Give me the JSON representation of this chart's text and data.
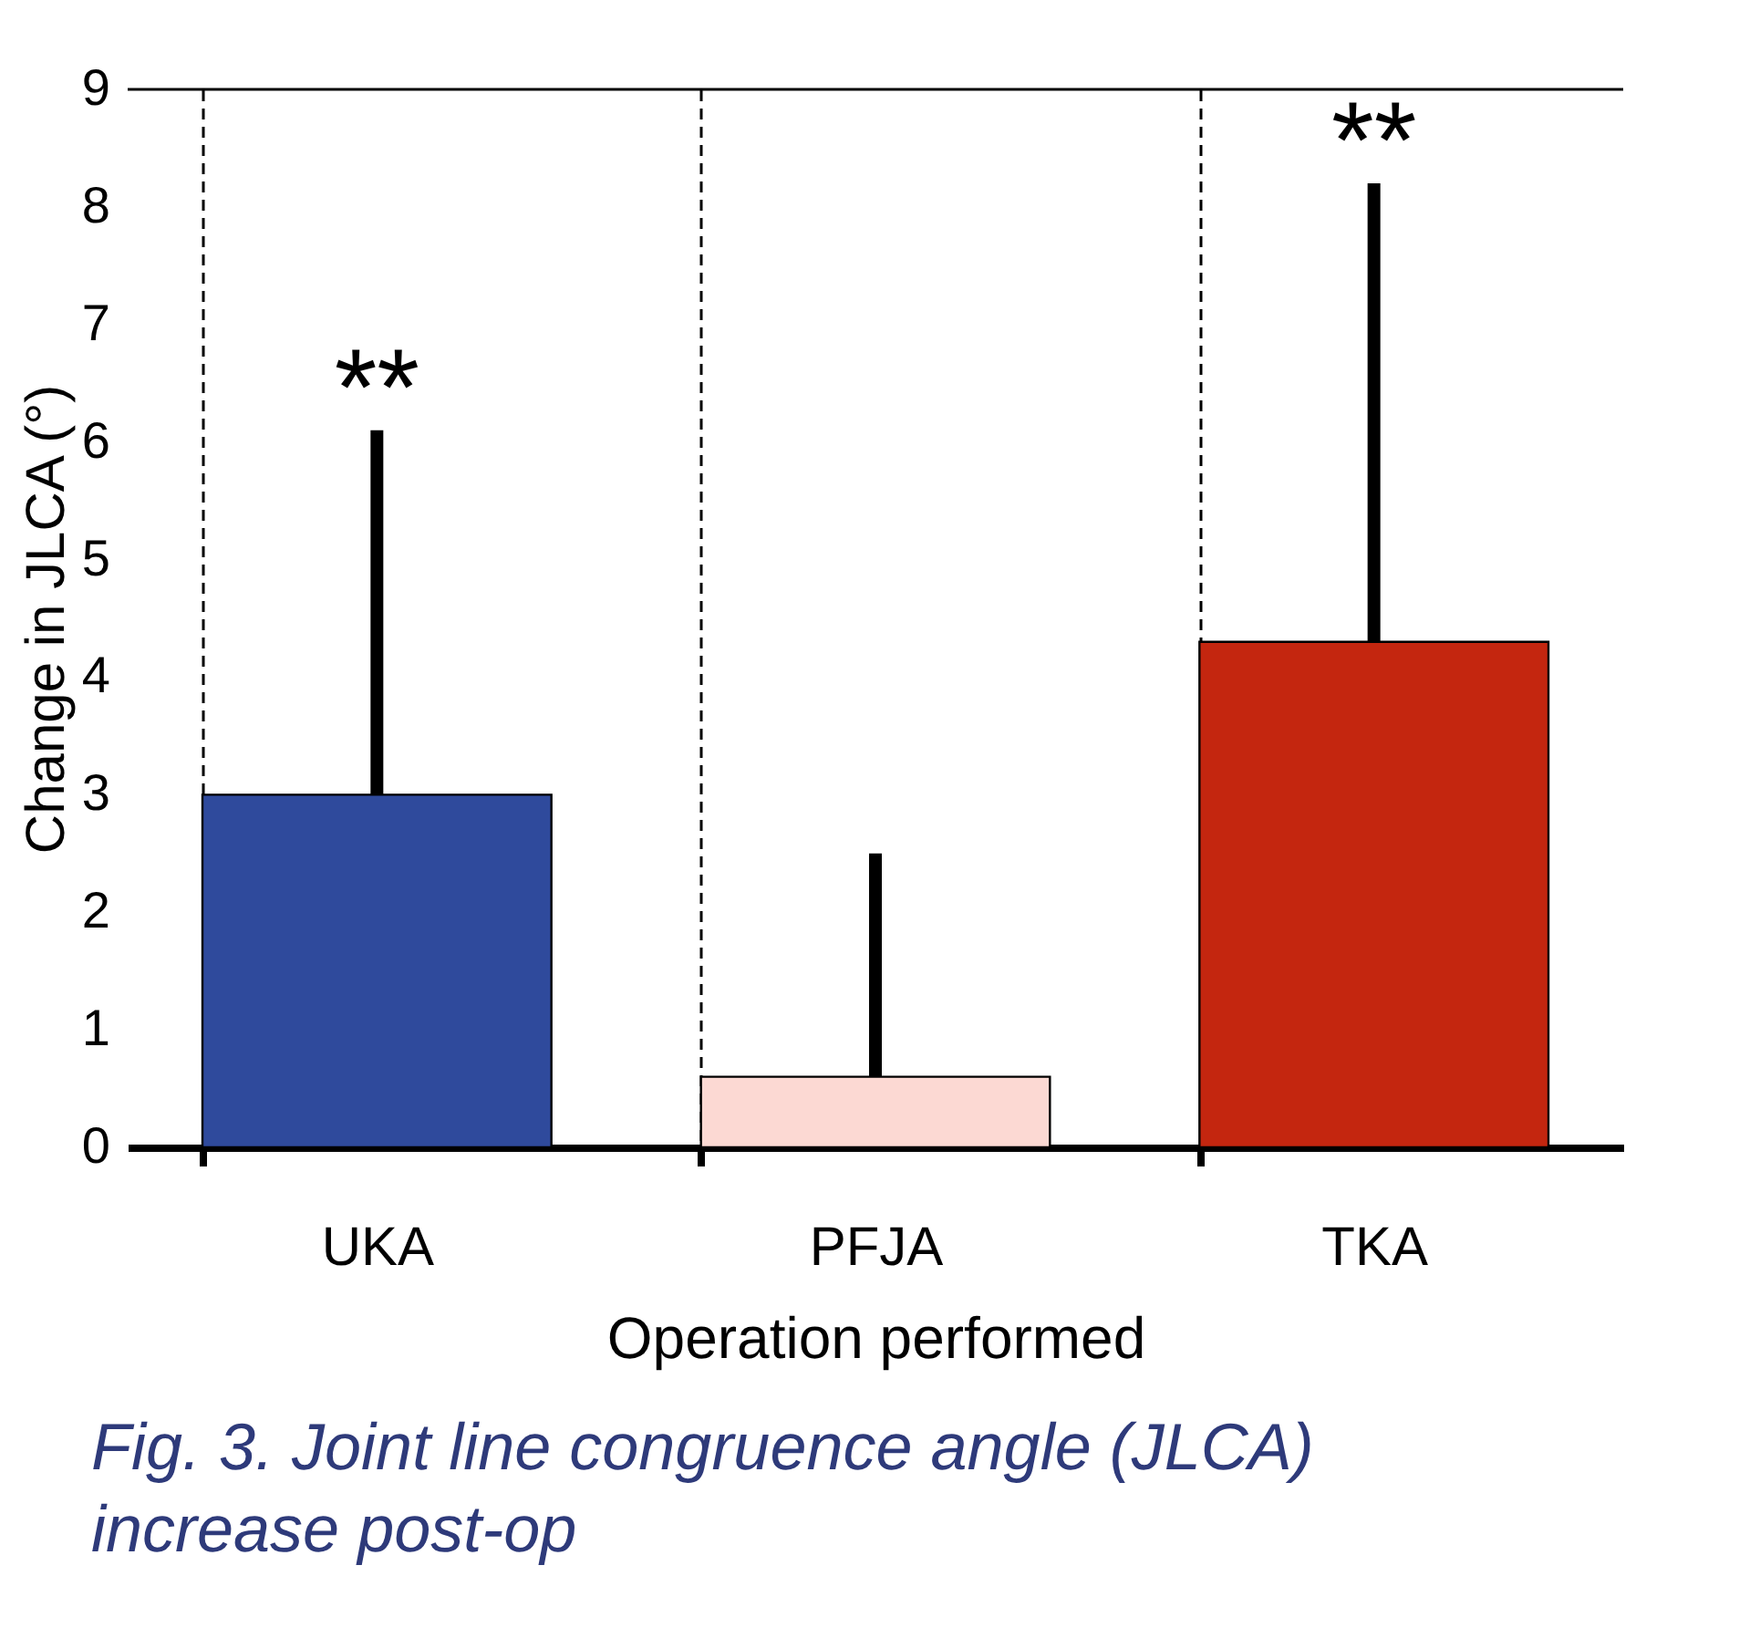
{
  "chart_data": {
    "type": "bar",
    "xlabel": "Operation performed",
    "ylabel": "Change in JLCA (°)",
    "categories": [
      "UKA",
      "PFJA",
      "TKA"
    ],
    "values": [
      3.0,
      0.6,
      4.3
    ],
    "colors": [
      "#2f4a9c",
      "#fcd9d3",
      "#c4260f"
    ],
    "errors": [
      [
        3.0,
        6.1
      ],
      [
        0.6,
        2.5
      ],
      [
        4.3,
        8.2
      ]
    ],
    "ylim": [
      0,
      9
    ],
    "yticks": [
      0,
      1,
      2,
      3,
      4,
      5,
      6,
      7,
      8,
      9
    ],
    "grid": "x",
    "legend": false,
    "annotations": [
      {
        "text": "**",
        "x": "UKA",
        "y": 6.1
      },
      {
        "text": "**",
        "x": "TKA",
        "y": 8.2
      },
      "Fig. 3. Joint line congruence angle (JLCA) increase post-op"
    ]
  }
}
